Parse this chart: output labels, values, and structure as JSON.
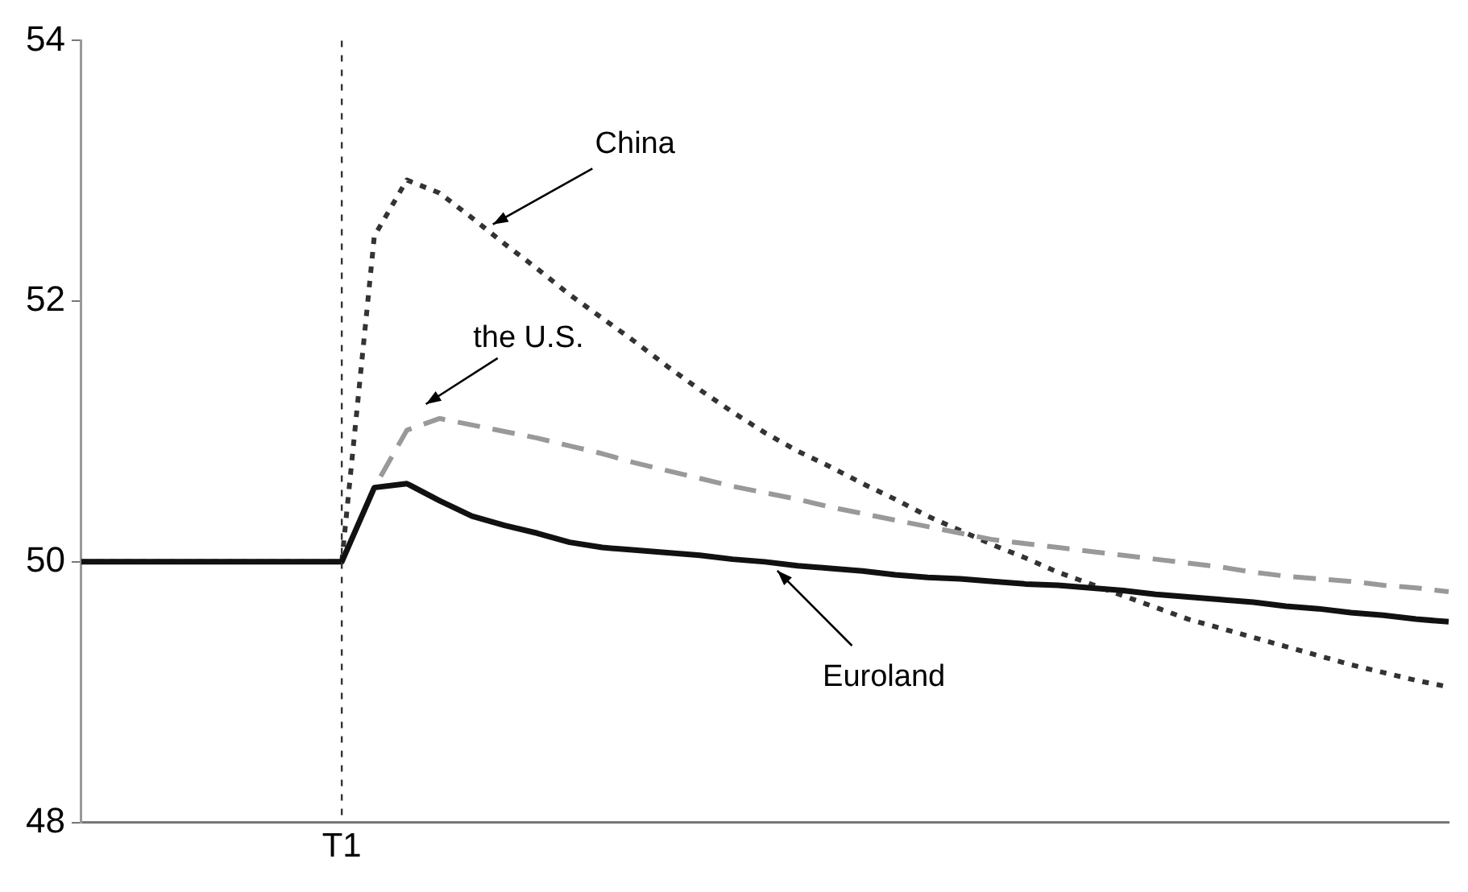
{
  "chart_data": {
    "type": "line",
    "categories": [
      null,
      null,
      null,
      null,
      null,
      null,
      null,
      null,
      "T1",
      null,
      null,
      null,
      null,
      null,
      null,
      null,
      null,
      null,
      null,
      null,
      null,
      null,
      null,
      null,
      null,
      null,
      null,
      null,
      null,
      null,
      null,
      null,
      null,
      null,
      null,
      null,
      null,
      null,
      null,
      null,
      null,
      null,
      null
    ],
    "ylim": [
      48,
      54
    ],
    "yticks": [
      48,
      50,
      52,
      54
    ],
    "grid": false,
    "legend": false,
    "marker": "none",
    "ref_lines": [
      {
        "axis": "x",
        "value": "T1",
        "line_style": "dotted",
        "color": "#333333"
      }
    ],
    "series": [
      {
        "color": "#111111",
        "line_style": "solid",
        "values": [
          50,
          50,
          50,
          50,
          50,
          50,
          50,
          50,
          50,
          50.57,
          50.6,
          50.47,
          50.35,
          50.28,
          50.22,
          50.15,
          50.11,
          50.09,
          50.07,
          50.05,
          50.02,
          50.0,
          49.97,
          49.95,
          49.93,
          49.9,
          49.88,
          49.87,
          49.85,
          49.83,
          49.82,
          49.8,
          49.78,
          49.75,
          49.73,
          49.71,
          49.69,
          49.66,
          49.64,
          49.61,
          49.59,
          49.56,
          49.54
        ]
      },
      {
        "color": "#999999",
        "line_style": "dashed",
        "values": [
          50,
          50,
          50,
          50,
          50,
          50,
          50,
          50,
          50,
          50.57,
          51.01,
          51.1,
          51.05,
          51.0,
          50.95,
          50.89,
          50.83,
          50.76,
          50.7,
          50.64,
          50.58,
          50.53,
          50.48,
          50.42,
          50.37,
          50.32,
          50.27,
          50.22,
          50.17,
          50.14,
          50.11,
          50.08,
          50.05,
          50.02,
          49.99,
          49.96,
          49.92,
          49.89,
          49.87,
          49.85,
          49.82,
          49.8,
          49.77
        ]
      },
      {
        "color": "#333333",
        "line_style": "dotted",
        "values": [
          50,
          50,
          50,
          50,
          50,
          50,
          50,
          50,
          50,
          52.5,
          52.93,
          52.83,
          52.64,
          52.44,
          52.25,
          52.05,
          51.87,
          51.69,
          51.5,
          51.32,
          51.15,
          50.99,
          50.85,
          50.73,
          50.6,
          50.48,
          50.35,
          50.24,
          50.13,
          50.03,
          49.92,
          49.83,
          49.74,
          49.65,
          49.56,
          49.49,
          49.42,
          49.35,
          49.28,
          49.21,
          49.15,
          49.09,
          49.04
        ]
      }
    ],
    "annotations": [
      "China",
      "the U.S.",
      "Euroland"
    ]
  }
}
